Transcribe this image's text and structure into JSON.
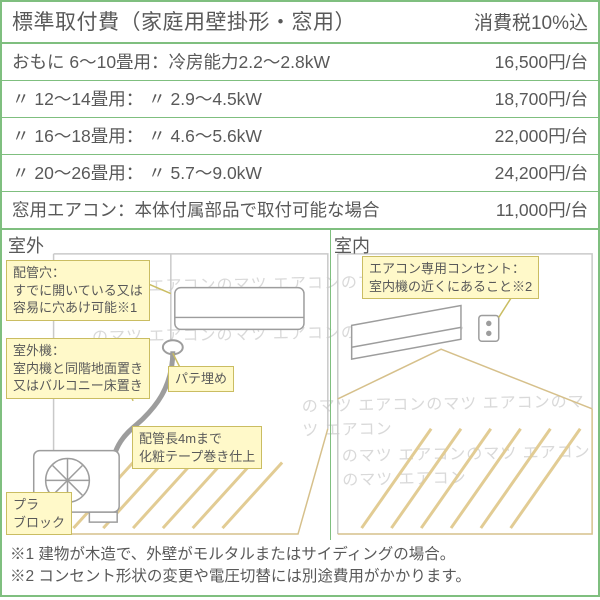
{
  "header": {
    "title": "標準取付費（家庭用壁掛形・窓用）",
    "tax": "消費税10%込"
  },
  "colors": {
    "border": "#7fbf7f",
    "text": "#595959",
    "callout_bg": "#fff9c9",
    "callout_border": "#cabd62",
    "watermark": "#d9d9d9",
    "floor_stroke": "#d6c08b",
    "wall_stroke": "#c9c9c9",
    "unit_stroke": "#9d9d9d"
  },
  "ditto": "〃",
  "table": {
    "rows": [
      {
        "spec": "おもに  6～10畳用：冷房能力2.2～2.8kW",
        "price": "16,500円/台"
      },
      {
        "spec": "〃 12～14畳用：  〃  2.9～4.5kW",
        "price": "18,700円/台"
      },
      {
        "spec": "〃 16～18畳用：  〃  4.6～5.6kW",
        "price": "22,000円/台"
      },
      {
        "spec": "〃 20～26畳用：  〃  5.7～9.0kW",
        "price": "24,200円/台"
      },
      {
        "spec": "窓用エアコン：本体付属部品で取付可能な場合",
        "price": "11,000円/台"
      }
    ]
  },
  "diagram": {
    "outdoor_label": "室外",
    "indoor_label": "室内",
    "callouts": {
      "pipe_hole": "配管穴：\nすでに開いている又は\n容易に穴あけ可能※1",
      "outdoor_unit": "室外機：\n室内機と同階地面置き\n又はバルコニー床置き",
      "putty": "パテ埋め",
      "pipe_len": "配管長4mまで\n化粧テープ巻き仕上",
      "pla_block": "プラ\nブロック",
      "outlet": "エアコン専用コンセント：\n室内機の近くにあること※2"
    }
  },
  "footnotes": {
    "n1": "※1 建物が木造で、外壁がモルタルまたはサイディングの場合。",
    "n2": "※2 コンセント形状の変更や電圧切替には別途費用がかかります。"
  },
  "watermark_text": "のマツ エアコンのマツ エアコンのマツ エアコン"
}
